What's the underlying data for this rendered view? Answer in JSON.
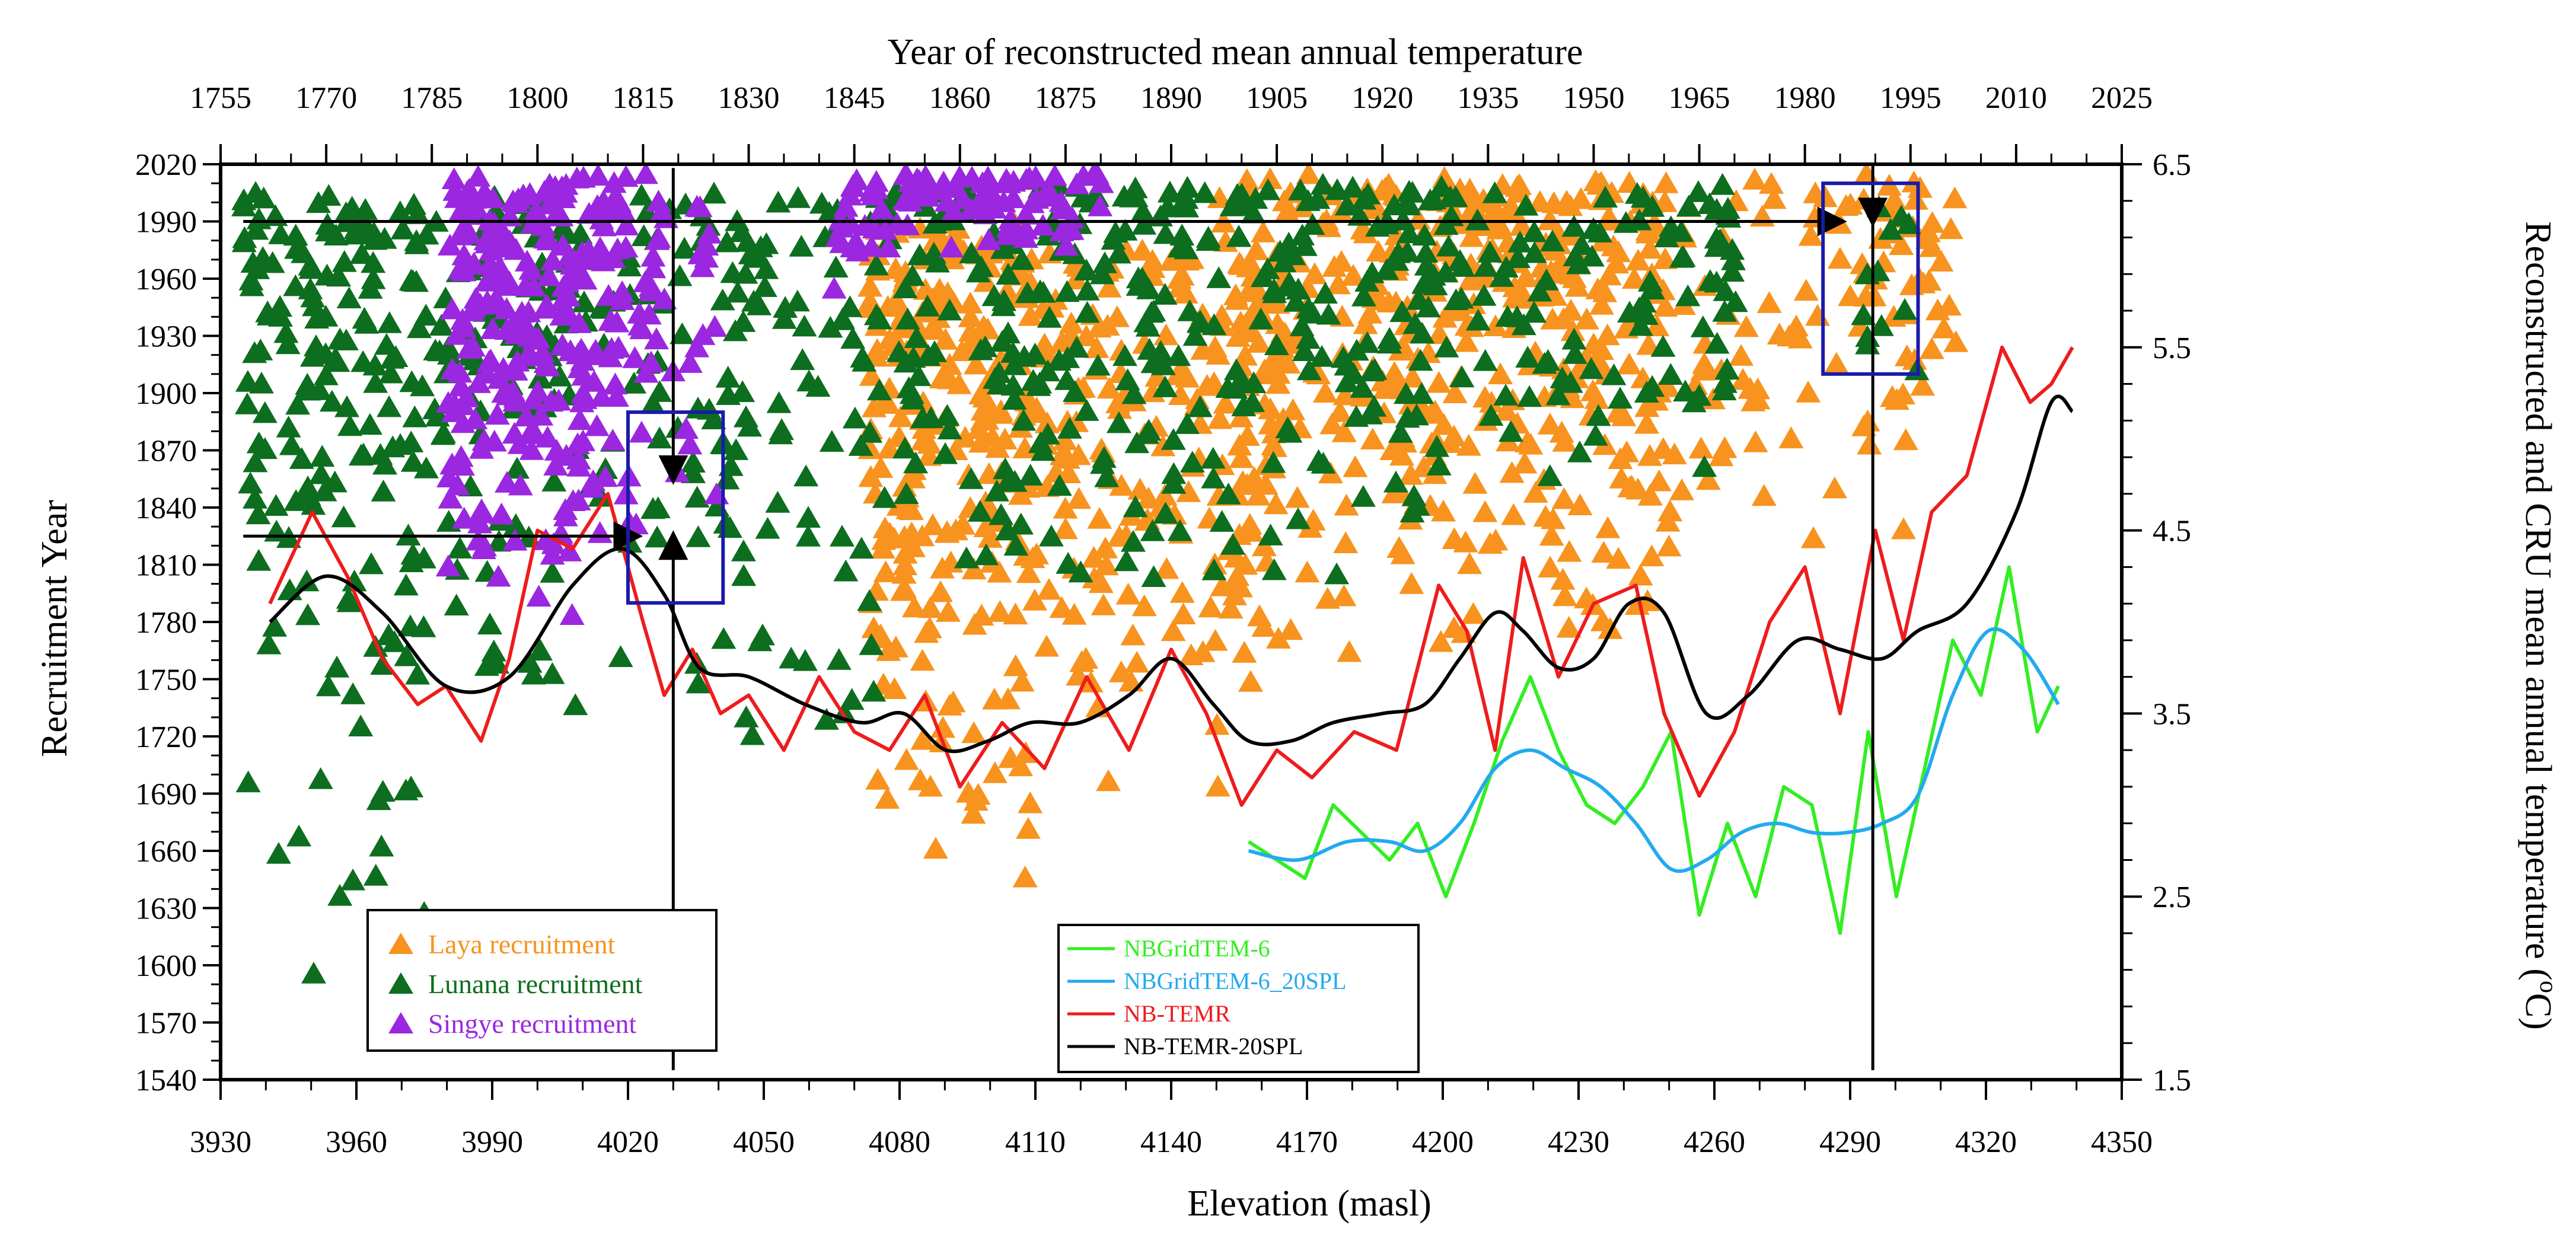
{
  "chart_data": {
    "type": "scatter",
    "title": "",
    "top_axis": {
      "label": "Year of reconstructed mean annual temperature",
      "ticks": [
        "1755",
        "1770",
        "1785",
        "1800",
        "1815",
        "1830",
        "1845",
        "1860",
        "1875",
        "1890",
        "1905",
        "1920",
        "1935",
        "1950",
        "1965",
        "1980",
        "1995",
        "2010",
        "2025"
      ],
      "range": [
        1755,
        2025
      ]
    },
    "bottom_axis": {
      "label": "Elevation (masl)",
      "ticks": [
        "3930",
        "3960",
        "3990",
        "4020",
        "4050",
        "4080",
        "4110",
        "4140",
        "4170",
        "4200",
        "4230",
        "4260",
        "4290",
        "4320",
        "4350"
      ],
      "range": [
        3930,
        4350
      ]
    },
    "left_axis": {
      "label": "Recruitment Year",
      "ticks": [
        "1540",
        "1570",
        "1600",
        "1630",
        "1660",
        "1690",
        "1720",
        "1750",
        "1780",
        "1810",
        "1840",
        "1870",
        "1900",
        "1930",
        "1960",
        "1990",
        "2020"
      ],
      "range": [
        1540,
        2020
      ]
    },
    "right_axis": {
      "label_prefix": "Reconstructed and CRU mean annual temperature (",
      "label_sup": "o",
      "label_suffix": "C)",
      "ticks": [
        "1.5",
        "2.5",
        "3.5",
        "4.5",
        "5.5",
        "6.5"
      ],
      "range": [
        1.5,
        6.5
      ]
    },
    "colors": {
      "laya": "#F7931E",
      "lunana": "#0C6E1E",
      "singye": "#9B27E0",
      "grid": "#33EE22",
      "grid_spl": "#22AAEE",
      "temr": "#EE1C1C",
      "temr_spl": "#000000",
      "box": "#1A1AAA"
    },
    "legend_scatter": [
      {
        "label": "Laya recruitment",
        "color": "#F7931E"
      },
      {
        "label": "Lunana recruitment",
        "color": "#0C6E1E"
      },
      {
        "label": "Singye recruitment",
        "color": "#9B27E0"
      }
    ],
    "legend_lines": [
      {
        "label": "NBGridTEM-6",
        "color": "#33EE22"
      },
      {
        "label": "NBGridTEM-6_20SPL",
        "color": "#22AAEE"
      },
      {
        "label": "NB-TEMR",
        "color": "#EE1C1C"
      },
      {
        "label": "NB-TEMR-20SPL",
        "color": "#000000"
      }
    ],
    "scatter_clusters": {
      "laya": [
        {
          "elev": [
            4073,
            4110
          ],
          "year": [
            1630,
            1990
          ],
          "n": 260
        },
        {
          "elev": [
            4110,
            4165
          ],
          "year": [
            1680,
            1975
          ],
          "n": 200
        },
        {
          "elev": [
            4150,
            4175
          ],
          "year": [
            1730,
            2015
          ],
          "n": 60
        },
        {
          "elev": [
            4175,
            4250
          ],
          "year": [
            1750,
            2010
          ],
          "n": 260
        },
        {
          "elev": [
            4195,
            4315
          ],
          "year": [
            1810,
            2015
          ],
          "n": 150
        },
        {
          "elev": [
            4285,
            4312
          ],
          "year": [
            1860,
            2010
          ],
          "n": 30
        }
      ],
      "lunana": [
        {
          "elev": [
            3935,
            3975
          ],
          "year": [
            1700,
            2005
          ],
          "n": 160
        },
        {
          "elev": [
            3935,
            3975
          ],
          "year": [
            1550,
            1700
          ],
          "n": 18
        },
        {
          "elev": [
            3975,
            4075
          ],
          "year": [
            1700,
            2005
          ],
          "n": 240
        },
        {
          "elev": [
            4075,
            4200
          ],
          "year": [
            1790,
            2010
          ],
          "n": 330
        },
        {
          "elev": [
            4200,
            4265
          ],
          "year": [
            1840,
            2010
          ],
          "n": 110
        },
        {
          "elev": [
            4292,
            4305
          ],
          "year": [
            1870,
            2000
          ],
          "n": 12
        }
      ],
      "singye": [
        {
          "elev": [
            3980,
            4020
          ],
          "year": [
            1780,
            2015
          ],
          "n": 260
        },
        {
          "elev": [
            4020,
            4040
          ],
          "year": [
            1800,
            2015
          ],
          "n": 40
        },
        {
          "elev": [
            4065,
            4080
          ],
          "year": [
            1940,
            2015
          ],
          "n": 25
        },
        {
          "elev": [
            4080,
            4125
          ],
          "year": [
            1970,
            2015
          ],
          "n": 70
        }
      ]
    },
    "series": [
      {
        "name": "NB-TEMR-20SPL",
        "x_axis": "year",
        "x": [
          1762,
          1770,
          1778,
          1787,
          1796,
          1805,
          1812,
          1818,
          1823,
          1830,
          1838,
          1846,
          1852,
          1858,
          1864,
          1870,
          1877,
          1884,
          1890,
          1896,
          1901,
          1907,
          1913,
          1920,
          1926,
          1931,
          1936,
          1940,
          1945,
          1950,
          1955,
          1960,
          1966,
          1972,
          1979,
          1985,
          1991,
          1996,
          2003,
          2010,
          2015,
          2018
        ],
        "y": [
          4.0,
          4.25,
          4.05,
          3.65,
          3.7,
          4.2,
          4.4,
          4.15,
          3.75,
          3.7,
          3.55,
          3.45,
          3.5,
          3.3,
          3.35,
          3.45,
          3.45,
          3.6,
          3.8,
          3.55,
          3.35,
          3.35,
          3.45,
          3.5,
          3.55,
          3.8,
          4.05,
          3.95,
          3.75,
          3.8,
          4.1,
          4.05,
          3.5,
          3.6,
          3.9,
          3.85,
          3.8,
          3.95,
          4.1,
          4.6,
          5.2,
          5.15
        ]
      },
      {
        "name": "NB-TEMR",
        "x_axis": "year",
        "x": [
          1762,
          1768,
          1773,
          1778,
          1783,
          1787,
          1792,
          1796,
          1800,
          1805,
          1810,
          1815,
          1818,
          1822,
          1826,
          1830,
          1835,
          1840,
          1845,
          1850,
          1855,
          1860,
          1866,
          1872,
          1878,
          1884,
          1890,
          1895,
          1900,
          1905,
          1910,
          1916,
          1922,
          1928,
          1932,
          1936,
          1940,
          1945,
          1950,
          1956,
          1960,
          1965,
          1970,
          1975,
          1980,
          1985,
          1990,
          1994,
          1998,
          2003,
          2008,
          2012,
          2015,
          2018
        ],
        "y": [
          4.1,
          4.6,
          4.25,
          3.8,
          3.55,
          3.65,
          3.35,
          3.8,
          4.5,
          4.4,
          4.7,
          4.0,
          3.6,
          3.85,
          3.5,
          3.6,
          3.3,
          3.7,
          3.4,
          3.3,
          3.6,
          3.1,
          3.45,
          3.2,
          3.7,
          3.3,
          3.85,
          3.5,
          3.0,
          3.3,
          3.15,
          3.4,
          3.3,
          4.2,
          3.95,
          3.3,
          4.35,
          3.7,
          4.1,
          4.2,
          3.5,
          3.05,
          3.4,
          4.0,
          4.3,
          3.5,
          4.5,
          3.9,
          4.6,
          4.8,
          5.5,
          5.2,
          5.3,
          5.5
        ]
      },
      {
        "name": "NBGridTEM-6",
        "x_axis": "year",
        "x": [
          1901,
          1905,
          1909,
          1913,
          1917,
          1921,
          1925,
          1929,
          1933,
          1937,
          1941,
          1945,
          1949,
          1953,
          1957,
          1961,
          1965,
          1969,
          1973,
          1977,
          1981,
          1985,
          1989,
          1993,
          1997,
          2001,
          2005,
          2009,
          2013,
          2016
        ],
        "y": [
          2.8,
          2.7,
          2.6,
          3.0,
          2.85,
          2.7,
          2.9,
          2.5,
          2.9,
          3.35,
          3.7,
          3.3,
          3.0,
          2.9,
          3.1,
          3.4,
          2.4,
          2.9,
          2.5,
          3.1,
          3.0,
          2.3,
          3.4,
          2.5,
          3.2,
          3.9,
          3.6,
          4.3,
          3.4,
          3.65
        ]
      },
      {
        "name": "NBGridTEM-6_20SPL",
        "x_axis": "year",
        "x": [
          1901,
          1908,
          1915,
          1921,
          1926,
          1931,
          1936,
          1941,
          1946,
          1951,
          1956,
          1961,
          1966,
          1971,
          1976,
          1981,
          1986,
          1991,
          1996,
          2001,
          2006,
          2011,
          2016
        ],
        "y": [
          2.75,
          2.7,
          2.8,
          2.8,
          2.75,
          2.9,
          3.2,
          3.3,
          3.2,
          3.1,
          2.9,
          2.65,
          2.7,
          2.85,
          2.9,
          2.85,
          2.85,
          2.9,
          3.05,
          3.6,
          3.95,
          3.85,
          3.55
        ]
      }
    ],
    "annotations": {
      "arrows": [
        {
          "from_elev": 3935,
          "to_elev": 4022,
          "at_year": 1825
        },
        {
          "from_elev": 3935,
          "to_elev": 4288,
          "at_year": 1990
        },
        {
          "at_elev": 4030,
          "from_year": 2018,
          "to_year": 1855
        },
        {
          "at_elev": 4030,
          "from_year": 1695,
          "to_year": 1825
        },
        {
          "at_elev": 4295,
          "from_year": 2020,
          "to_year": 1990
        }
      ],
      "vertical_lines": [
        {
          "elev": 4030,
          "year": [
            1545,
            1695
          ]
        },
        {
          "elev": 4295,
          "year": [
            1545,
            1990
          ]
        }
      ],
      "boxes": [
        {
          "elev": [
            4020,
            4041
          ],
          "year": [
            1790,
            1890
          ]
        },
        {
          "elev": [
            4284,
            4305
          ],
          "year": [
            1910,
            2010
          ]
        }
      ]
    }
  }
}
